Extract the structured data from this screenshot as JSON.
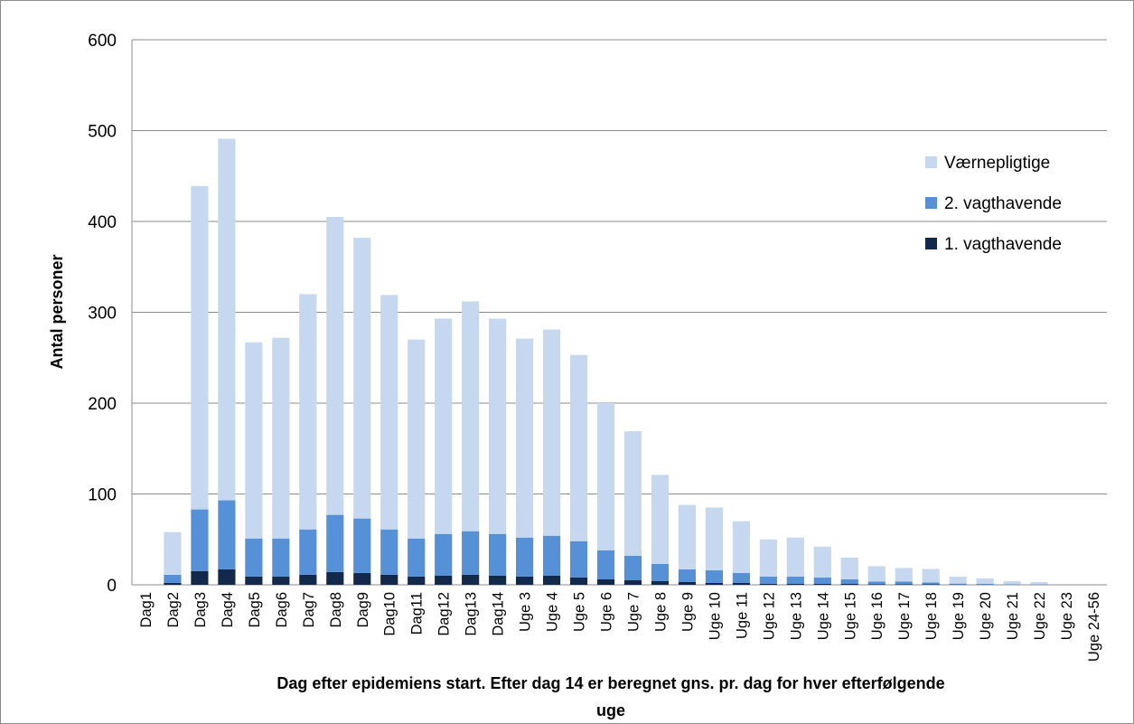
{
  "chart_data": {
    "type": "bar",
    "stacked": true,
    "xlabel_lines": [
      "Dag efter epidemiens start. Efter dag 14 er beregnet gns. pr. dag for hver efterfølgende",
      "uge"
    ],
    "ylabel": "Antal personer",
    "ylim": [
      0,
      600
    ],
    "yticks": [
      0,
      100,
      200,
      300,
      400,
      500,
      600
    ],
    "grid": true,
    "legend_position": "right",
    "categories": [
      "Dag1",
      "Dag2",
      "Dag3",
      "Dag4",
      "Dag5",
      "Dag6",
      "Dag7",
      "Dag8",
      "Dag9",
      "Dag10",
      "Dag11",
      "Dag12",
      "Dag13",
      "Dag14",
      "Uge 3",
      "Uge 4",
      "Uge 5",
      "Uge 6",
      "Uge 7",
      "Uge 8",
      "Uge 9",
      "Uge 10",
      "Uge 11",
      "Uge 12",
      "Uge 13",
      "Uge 14",
      "Uge 15",
      "Uge 16",
      "Uge 17",
      "Uge 18",
      "Uge 19",
      "Uge 20",
      "Uge 21",
      "Uge 22",
      "Uge 23",
      "Uge 24-56"
    ],
    "series": [
      {
        "name": "1. vagthavende",
        "color": "#13294b",
        "values": [
          0,
          2,
          15,
          17,
          9,
          9,
          11,
          14,
          13,
          11,
          9,
          10,
          11,
          10,
          9,
          10,
          8,
          6,
          5,
          4,
          3,
          2,
          2,
          1,
          1,
          1,
          1,
          0.5,
          0.5,
          0.5,
          0.3,
          0.2,
          0.1,
          0.1,
          0,
          0
        ]
      },
      {
        "name": "2. vagthavende",
        "color": "#5690d6",
        "values": [
          0,
          9,
          68,
          76,
          42,
          42,
          50,
          63,
          60,
          50,
          42,
          46,
          48,
          46,
          43,
          44,
          40,
          32,
          27,
          19,
          14,
          14,
          11,
          8,
          8,
          7,
          5,
          3,
          3,
          2,
          1,
          1,
          0.5,
          0.3,
          0,
          0
        ]
      },
      {
        "name": "Værnepligtige",
        "color": "#c5d8ef",
        "values": [
          0,
          47,
          356,
          398,
          216,
          221,
          259,
          328,
          309,
          258,
          219,
          237,
          253,
          237,
          219,
          227,
          205,
          162,
          137,
          98,
          71,
          69,
          57,
          41,
          43,
          34,
          24,
          17,
          15,
          15,
          7.7,
          5.8,
          3.4,
          2.6,
          0,
          0
        ]
      }
    ]
  }
}
